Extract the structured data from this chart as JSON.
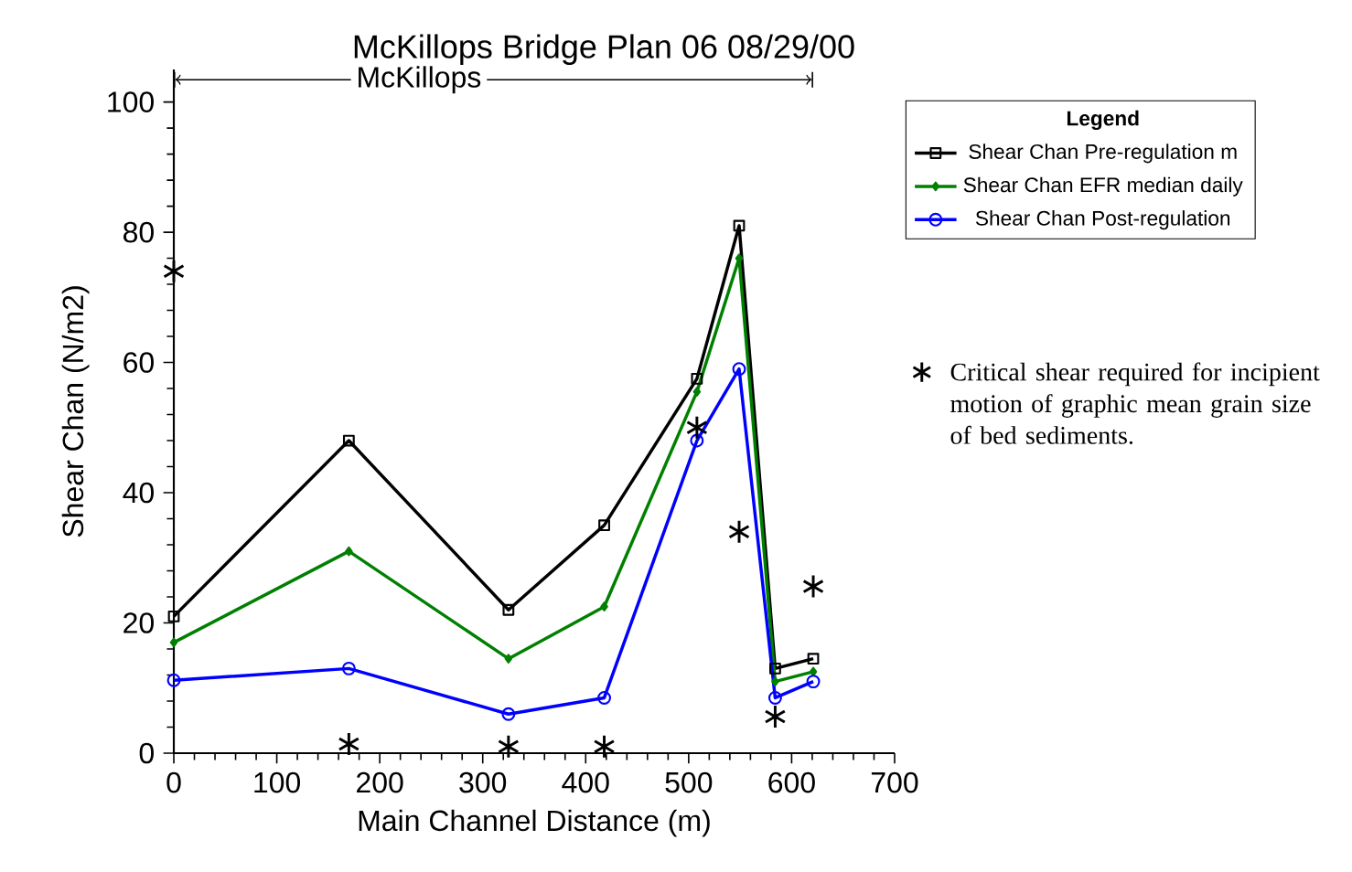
{
  "chart_data": {
    "type": "line",
    "title": "McKillops Bridge Plan 06 08/29/00",
    "xlabel": "Main Channel Distance (m)",
    "ylabel": "Shear Chan (N/m2)",
    "legend_title": "Legend",
    "x": [
      0,
      170,
      325,
      418,
      508,
      549,
      584,
      621
    ],
    "series": [
      {
        "name": "Shear Chan Pre-regulation m",
        "color": "#000000",
        "marker": "square",
        "values": [
          21,
          48,
          22,
          35,
          57.5,
          81,
          13,
          14.5
        ]
      },
      {
        "name": "Shear Chan EFR median daily",
        "color": "#008000",
        "marker": "diamond",
        "values": [
          17,
          31,
          14.5,
          22.5,
          55.5,
          76,
          11,
          12.5
        ]
      },
      {
        "name": "Shear Chan Post-regulation",
        "color": "#0000ff",
        "marker": "circle",
        "values": [
          11.2,
          13,
          6,
          8.5,
          48,
          59,
          8.5,
          11
        ]
      },
      {
        "name": "Critical shear required for incipient motion of graphic mean grain size of bed sediments.",
        "type": "scatter",
        "color": "#000000",
        "marker": "cross",
        "values": [
          74,
          1.4,
          1,
          1,
          50,
          34,
          5.6,
          25.6
        ]
      }
    ],
    "annotations": [
      "McKillops"
    ],
    "xlim": [
      0,
      700
    ],
    "ylim": [
      0,
      105
    ],
    "xticks": [
      0,
      100,
      200,
      300,
      400,
      500,
      600,
      700
    ],
    "yticks": [
      0,
      20,
      40,
      60,
      80,
      100
    ],
    "grid": false,
    "legend": "top right"
  }
}
